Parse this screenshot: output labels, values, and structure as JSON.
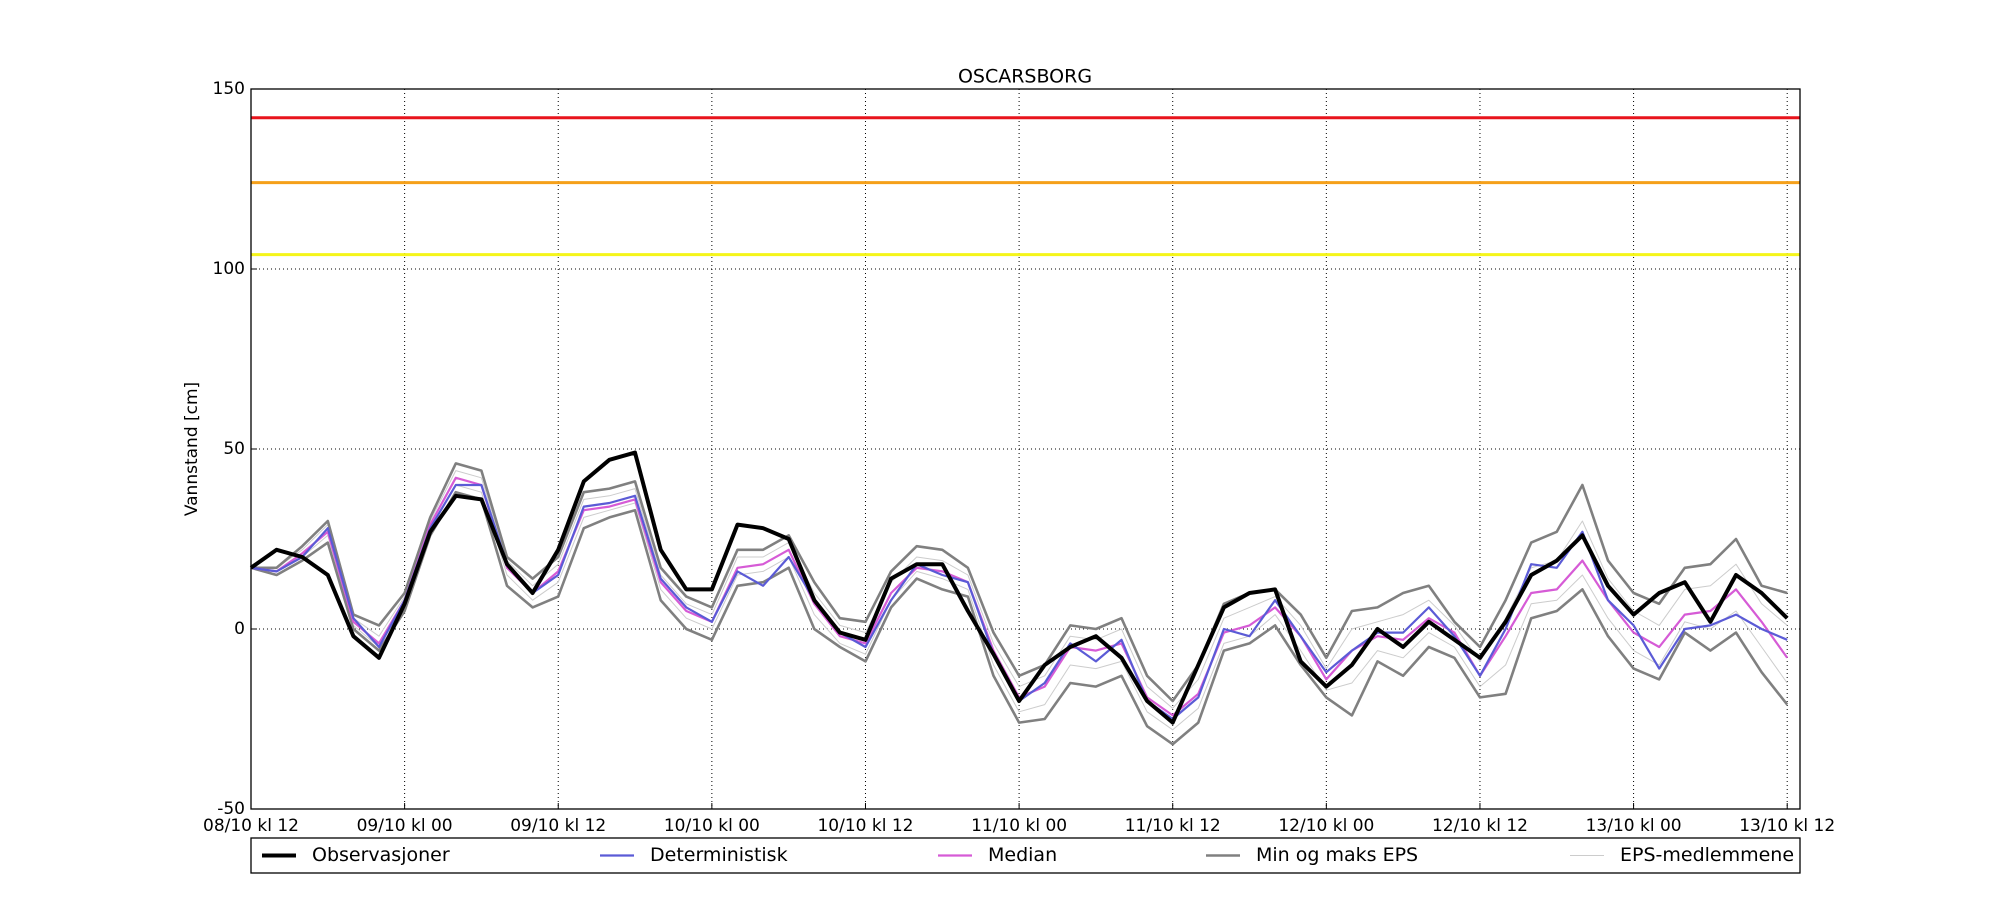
{
  "chart_data": {
    "type": "line",
    "title": "OSCARSBORG",
    "y_label": "Vannstand [cm]",
    "x": [
      0,
      2,
      4,
      6,
      8,
      10,
      12,
      14,
      16,
      18,
      20,
      22,
      24,
      26,
      28,
      30,
      32,
      34,
      36,
      38,
      40,
      42,
      44,
      46,
      48,
      50,
      52,
      54,
      56,
      58,
      60,
      62,
      64,
      66,
      68,
      70,
      72,
      74,
      76,
      78,
      80,
      82,
      84,
      86,
      88,
      90,
      92,
      94,
      96,
      98,
      100,
      102,
      104,
      106,
      108,
      110,
      112,
      114,
      116,
      118,
      120
    ],
    "xlim": [
      0,
      121
    ],
    "xticks": [
      {
        "value": 0,
        "label": "08/10 kl 12"
      },
      {
        "value": 12,
        "label": "09/10 kl 00"
      },
      {
        "value": 24,
        "label": "09/10 kl 12"
      },
      {
        "value": 36,
        "label": "10/10 kl 00"
      },
      {
        "value": 48,
        "label": "10/10 kl 12"
      },
      {
        "value": 60,
        "label": "11/10 kl 00"
      },
      {
        "value": 72,
        "label": "11/10 kl 12"
      },
      {
        "value": 84,
        "label": "12/10 kl 00"
      },
      {
        "value": 96,
        "label": "12/10 kl 12"
      },
      {
        "value": 108,
        "label": "13/10 kl 00"
      },
      {
        "value": 120,
        "label": "13/10 kl 12"
      }
    ],
    "ylim": [
      -50,
      150
    ],
    "yticks": [
      -50,
      0,
      50,
      100,
      150
    ],
    "grid": true,
    "thresholds": [
      {
        "value": 142,
        "color": "#e8141c"
      },
      {
        "value": 124,
        "color": "#f5a01a"
      },
      {
        "value": 104,
        "color": "#f5f51a"
      }
    ],
    "series": [
      {
        "name": "Observasjoner",
        "color": "#000000",
        "values": [
          17,
          22,
          20,
          15,
          -2,
          -8,
          7,
          27,
          37,
          36,
          18,
          10,
          22,
          41,
          47,
          49,
          22,
          11,
          11,
          29,
          28,
          25,
          8,
          -1,
          -3,
          14,
          18,
          18,
          5,
          -7,
          -20,
          -10,
          -5,
          -2,
          -8,
          -20,
          -26,
          -10,
          6,
          10,
          11,
          -9,
          -16,
          -10,
          0,
          -5,
          2,
          -3,
          -8,
          2,
          15,
          19,
          26,
          12,
          4,
          10,
          13,
          2,
          15,
          10,
          3
        ]
      },
      {
        "name": "Deterministisk",
        "color": "#5b5bd6",
        "values": [
          17,
          16,
          20,
          28,
          3,
          -5,
          8,
          28,
          40,
          40,
          18,
          10,
          15,
          34,
          35,
          37,
          14,
          6,
          2,
          16,
          12,
          20,
          8,
          -1,
          -5,
          8,
          18,
          15,
          13,
          -7,
          -20,
          -15,
          -4,
          -9,
          -3,
          -20,
          -25,
          -19,
          0,
          -2,
          8,
          -2,
          -12,
          -6,
          -1,
          -1,
          6,
          -2,
          -13,
          0,
          18,
          17,
          27,
          8,
          1,
          -11,
          0,
          1,
          4,
          0,
          -3
        ]
      },
      {
        "name": "Median",
        "color": "#d65bd6",
        "values": [
          17,
          16,
          21,
          27,
          2,
          -4,
          8,
          29,
          42,
          40,
          17,
          10,
          16,
          33,
          34,
          36,
          13,
          5,
          2,
          17,
          18,
          22,
          7,
          -2,
          -4,
          10,
          17,
          16,
          13,
          -6,
          -19,
          -16,
          -5,
          -6,
          -4,
          -19,
          -24,
          -18,
          -1,
          1,
          6,
          -2,
          -14,
          -6,
          -2,
          -3,
          3,
          -1,
          -13,
          -2,
          10,
          11,
          19,
          8,
          -1,
          -5,
          4,
          5,
          11,
          2,
          -8
        ]
      },
      {
        "name": "Min og maks EPS",
        "color": "#808080",
        "upper": [
          17,
          17,
          23,
          30,
          4,
          1,
          10,
          31,
          46,
          44,
          20,
          14,
          20,
          38,
          39,
          41,
          17,
          9,
          6,
          22,
          22,
          26,
          13,
          3,
          2,
          16,
          23,
          22,
          17,
          -1,
          -13,
          -10,
          1,
          0,
          3,
          -13,
          -20,
          -10,
          7,
          10,
          11,
          4,
          -8,
          5,
          6,
          10,
          12,
          2,
          -5,
          8,
          24,
          27,
          40,
          19,
          10,
          7,
          17,
          18,
          25,
          12,
          10
        ],
        "lower": [
          17,
          15,
          19,
          24,
          0,
          -6,
          5,
          26,
          38,
          36,
          12,
          6,
          9,
          28,
          31,
          33,
          8,
          0,
          -3,
          12,
          13,
          17,
          0,
          -5,
          -9,
          6,
          14,
          11,
          9,
          -13,
          -26,
          -25,
          -15,
          -16,
          -13,
          -27,
          -32,
          -26,
          -6,
          -4,
          1,
          -10,
          -19,
          -24,
          -9,
          -13,
          -5,
          -8,
          -19,
          -18,
          3,
          5,
          11,
          -2,
          -11,
          -14,
          -1,
          -6,
          -1,
          -12,
          -21
        ]
      },
      {
        "name": "EPS-medlemmene",
        "color": "#cccccc",
        "members": [
          [
            17,
            17,
            22,
            29,
            3,
            -2,
            9,
            30,
            44,
            42,
            19,
            12,
            18,
            36,
            37,
            39,
            15,
            7,
            4,
            20,
            20,
            24,
            10,
            1,
            -1,
            13,
            20,
            19,
            15,
            -4,
            -16,
            -13,
            -2,
            -3,
            0,
            -16,
            -22,
            -14,
            3,
            6,
            9,
            1,
            -11,
            0,
            2,
            4,
            8,
            1,
            -9,
            3,
            17,
            19,
            30,
            14,
            5,
            1,
            11,
            12,
            18,
            7,
            1
          ],
          [
            17,
            16,
            20,
            26,
            1,
            -5,
            7,
            28,
            40,
            38,
            15,
            8,
            13,
            31,
            33,
            35,
            11,
            3,
            0,
            15,
            16,
            20,
            4,
            -4,
            -7,
            8,
            16,
            14,
            11,
            -10,
            -23,
            -21,
            -10,
            -11,
            -9,
            -23,
            -28,
            -22,
            -4,
            -2,
            4,
            -6,
            -17,
            -15,
            -6,
            -8,
            -1,
            -5,
            -16,
            -10,
            7,
            8,
            15,
            3,
            -6,
            -10,
            2,
            0,
            5,
            -5,
            -15
          ]
        ]
      }
    ]
  }
}
